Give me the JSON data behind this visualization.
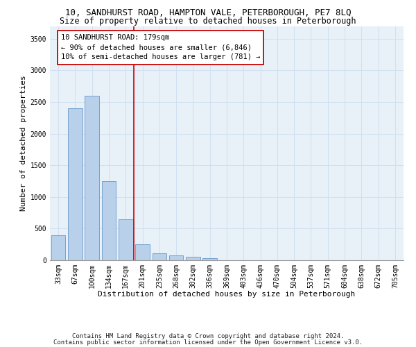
{
  "title1": "10, SANDHURST ROAD, HAMPTON VALE, PETERBOROUGH, PE7 8LQ",
  "title2": "Size of property relative to detached houses in Peterborough",
  "xlabel": "Distribution of detached houses by size in Peterborough",
  "ylabel": "Number of detached properties",
  "footnote1": "Contains HM Land Registry data © Crown copyright and database right 2024.",
  "footnote2": "Contains public sector information licensed under the Open Government Licence v3.0.",
  "bar_labels": [
    "33sqm",
    "67sqm",
    "100sqm",
    "134sqm",
    "167sqm",
    "201sqm",
    "235sqm",
    "268sqm",
    "302sqm",
    "336sqm",
    "369sqm",
    "403sqm",
    "436sqm",
    "470sqm",
    "504sqm",
    "537sqm",
    "571sqm",
    "604sqm",
    "638sqm",
    "672sqm",
    "705sqm"
  ],
  "bar_values": [
    400,
    2400,
    2600,
    1250,
    650,
    250,
    110,
    75,
    55,
    30,
    0,
    0,
    0,
    0,
    0,
    0,
    0,
    0,
    0,
    0,
    0
  ],
  "bar_color": "#b8d0ea",
  "bar_edge_color": "#6699cc",
  "vline_color": "#cc0000",
  "annotation_text_line1": "10 SANDHURST ROAD: 179sqm",
  "annotation_text_line2": "← 90% of detached houses are smaller (6,846)",
  "annotation_text_line3": "10% of semi-detached houses are larger (781) →",
  "ylim": [
    0,
    3700
  ],
  "yticks": [
    0,
    500,
    1000,
    1500,
    2000,
    2500,
    3000,
    3500
  ],
  "grid_color": "#d0dff0",
  "bg_color": "#e8f0f8",
  "title1_fontsize": 9,
  "title2_fontsize": 8.5,
  "xlabel_fontsize": 8,
  "ylabel_fontsize": 8,
  "tick_fontsize": 7,
  "footnote_fontsize": 6.5,
  "annot_fontsize": 7.5
}
